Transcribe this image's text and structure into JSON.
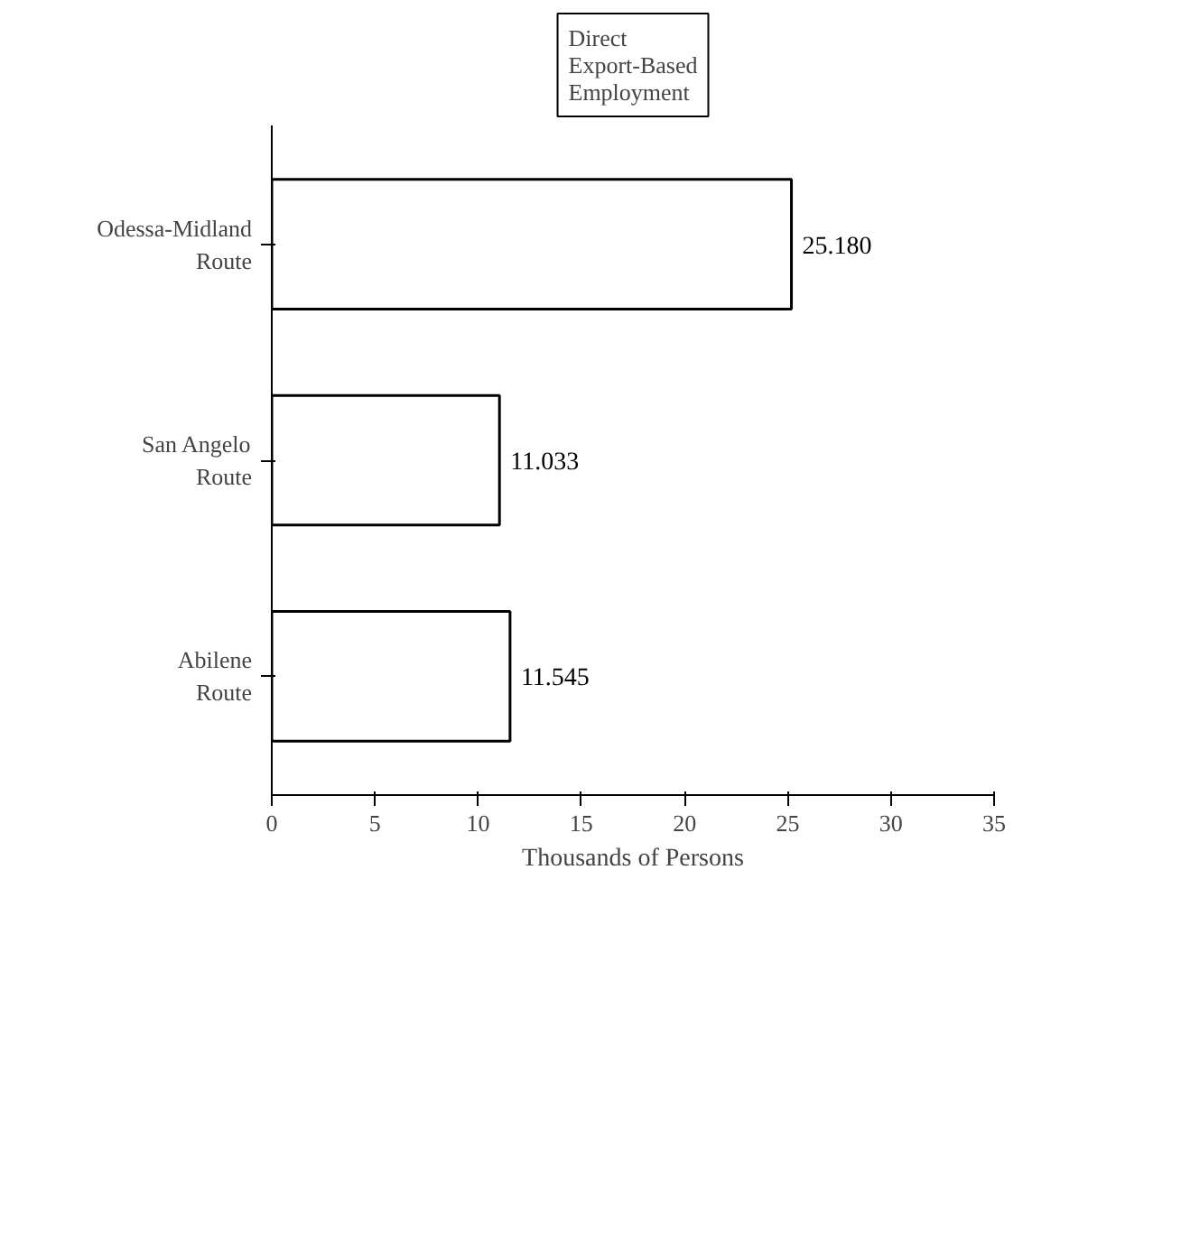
{
  "chart_data": {
    "type": "bar",
    "orientation": "horizontal",
    "title": "Direct Export-Based Employment",
    "xlabel": "Thousands of Persons",
    "categories": [
      "Odessa-Midland Route",
      "San Angelo Route",
      "Abilene Route"
    ],
    "values": [
      25.18,
      11.033,
      11.545
    ],
    "value_labels": [
      "25.180",
      "11.033",
      "11.545"
    ],
    "color": "#ffffff",
    "xlim": [
      0,
      35
    ],
    "xticks": [
      0,
      5,
      10,
      15,
      20,
      25,
      30,
      35
    ],
    "grid": false
  }
}
